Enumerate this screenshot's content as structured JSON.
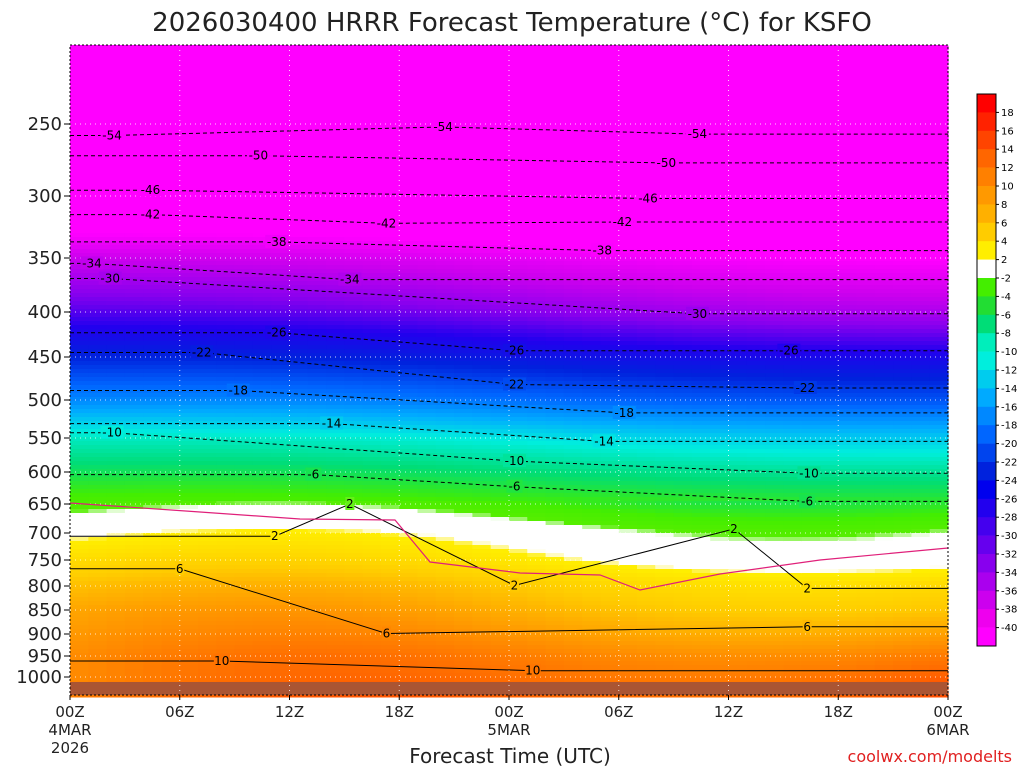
{
  "chart_data": {
    "type": "heatmap",
    "title": "2026030400 HRRR Forecast Temperature (°C) for KSFO",
    "xlabel": "Forecast Time (UTC)",
    "ylabel": "",
    "credit": "coolwx.com/modelts",
    "x_hours": [
      0,
      6,
      12,
      18,
      24,
      30,
      36,
      42,
      48
    ],
    "x_ticks": [
      {
        "label": "00Z",
        "sub1": "4MAR",
        "sub2": "2026"
      },
      {
        "label": "06Z",
        "sub1": "",
        "sub2": ""
      },
      {
        "label": "12Z",
        "sub1": "",
        "sub2": ""
      },
      {
        "label": "18Z",
        "sub1": "",
        "sub2": ""
      },
      {
        "label": "00Z",
        "sub1": "5MAR",
        "sub2": ""
      },
      {
        "label": "06Z",
        "sub1": "",
        "sub2": ""
      },
      {
        "label": "12Z",
        "sub1": "",
        "sub2": ""
      },
      {
        "label": "18Z",
        "sub1": "",
        "sub2": ""
      },
      {
        "label": "00Z",
        "sub1": "6MAR",
        "sub2": ""
      }
    ],
    "y_ticks": [
      "250",
      "300",
      "350",
      "400",
      "450",
      "500",
      "550",
      "600",
      "650",
      "700",
      "750",
      "800",
      "850",
      "900",
      "950",
      "1000"
    ],
    "pressure_levels": [
      200,
      250,
      300,
      350,
      400,
      450,
      500,
      550,
      600,
      650,
      700,
      750,
      800,
      850,
      900,
      950,
      1000,
      1035
    ],
    "temperature_profile_start": [
      -57,
      -54,
      -46,
      -36,
      -30,
      -24,
      -18,
      -11,
      -7,
      -3,
      1,
      4,
      7,
      9,
      10,
      11,
      11,
      12
    ],
    "temperature_profile_end": [
      -57,
      -55,
      -48,
      -40,
      -34,
      -27,
      -21,
      -14,
      -9,
      -5,
      -1,
      1,
      5,
      7,
      10,
      13,
      15,
      16
    ],
    "colorbar_ticks": [
      "18",
      "16",
      "14",
      "12",
      "10",
      "8",
      "6",
      "4",
      "2",
      "-2",
      "-4",
      "-6",
      "-8",
      "-10",
      "-12",
      "-14",
      "-16",
      "-18",
      "-20",
      "-22",
      "-24",
      "-26",
      "-28",
      "-30",
      "-32",
      "-34",
      "-36",
      "-38",
      "-40"
    ],
    "colorbar_colors": [
      "#ff0000",
      "#ff2200",
      "#ff4400",
      "#ff6600",
      "#ff8000",
      "#ff9900",
      "#ffb000",
      "#ffcc00",
      "#ffee00",
      "#ffffff",
      "#44ee00",
      "#22dd33",
      "#00dd77",
      "#00eebb",
      "#00eedd",
      "#00ccee",
      "#00aaff",
      "#0088ff",
      "#0066ff",
      "#0044ee",
      "#0022dd",
      "#0000ee",
      "#2200ee",
      "#4400ee",
      "#6600ee",
      "#8800ee",
      "#aa00ee",
      "#cc00ee",
      "#ee00ee",
      "#ff00ff"
    ],
    "contour_labels": [
      {
        "text": "-54",
        "hour": 2.3,
        "p": 258
      },
      {
        "text": "-54",
        "hour": 20.4,
        "p": 252
      },
      {
        "text": "-54",
        "hour": 34.3,
        "p": 257
      },
      {
        "text": "-50",
        "hour": 10.3,
        "p": 272
      },
      {
        "text": "-50",
        "hour": 32.6,
        "p": 277
      },
      {
        "text": "-46",
        "hour": 4.4,
        "p": 296
      },
      {
        "text": "-46",
        "hour": 31.6,
        "p": 302
      },
      {
        "text": "-42",
        "hour": 4.4,
        "p": 315
      },
      {
        "text": "-42",
        "hour": 17.3,
        "p": 322
      },
      {
        "text": "-42",
        "hour": 30.2,
        "p": 321
      },
      {
        "text": "-38",
        "hour": 11.3,
        "p": 337
      },
      {
        "text": "-38",
        "hour": 29.1,
        "p": 344
      },
      {
        "text": "-34",
        "hour": 1.2,
        "p": 355
      },
      {
        "text": "-34",
        "hour": 15.3,
        "p": 370
      },
      {
        "text": "-30",
        "hour": 2.2,
        "p": 369
      },
      {
        "text": "-30",
        "hour": 34.3,
        "p": 402
      },
      {
        "text": "-26",
        "hour": 11.3,
        "p": 423
      },
      {
        "text": "-26",
        "hour": 24.3,
        "p": 443
      },
      {
        "text": "-26",
        "hour": 39.3,
        "p": 443
      },
      {
        "text": "-22",
        "hour": 7.2,
        "p": 445
      },
      {
        "text": "-22",
        "hour": 24.3,
        "p": 482
      },
      {
        "text": "-22",
        "hour": 40.2,
        "p": 486
      },
      {
        "text": "-18",
        "hour": 9.2,
        "p": 489
      },
      {
        "text": "-18",
        "hour": 30.3,
        "p": 517
      },
      {
        "text": "-14",
        "hour": 14.3,
        "p": 531
      },
      {
        "text": "-14",
        "hour": 29.2,
        "p": 555
      },
      {
        "text": "-10",
        "hour": 2.3,
        "p": 543
      },
      {
        "text": "-10",
        "hour": 24.3,
        "p": 584
      },
      {
        "text": "-10",
        "hour": 40.4,
        "p": 602
      },
      {
        "text": "-6",
        "hour": 13.3,
        "p": 604
      },
      {
        "text": "-6",
        "hour": 24.3,
        "p": 623
      },
      {
        "text": "-6",
        "hour": 40.3,
        "p": 646
      },
      {
        "text": "2",
        "hour": 15.3,
        "p": 650
      },
      {
        "text": "2",
        "hour": 11.2,
        "p": 706
      },
      {
        "text": "2",
        "hour": 36.3,
        "p": 693
      },
      {
        "text": "2",
        "hour": 24.3,
        "p": 799
      },
      {
        "text": "2",
        "hour": 40.3,
        "p": 805
      },
      {
        "text": "6",
        "hour": 6.0,
        "p": 767
      },
      {
        "text": "6",
        "hour": 17.3,
        "p": 899
      },
      {
        "text": "6",
        "hour": 40.3,
        "p": 885
      },
      {
        "text": "10",
        "hour": 8.3,
        "p": 962
      },
      {
        "text": "10",
        "hour": 25.3,
        "p": 985
      }
    ]
  }
}
